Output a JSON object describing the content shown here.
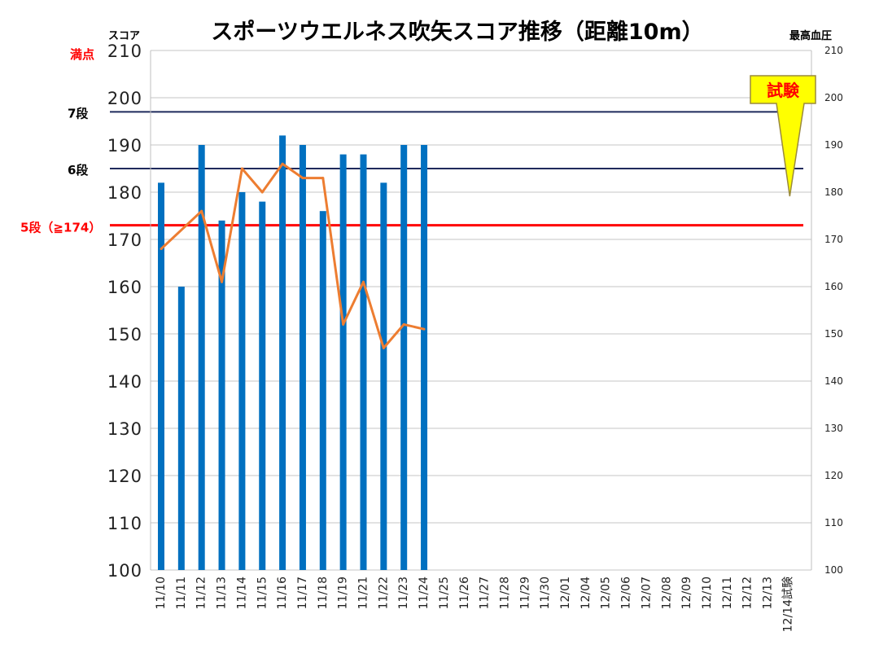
{
  "chart_data": {
    "type": "bar",
    "title": "スポーツウエルネス吹矢スコア推移（距離10m）",
    "ylabel": "スコア",
    "y2label": "最高血圧",
    "ylim": [
      100,
      210
    ],
    "y2lim": [
      100,
      210
    ],
    "yticks": [
      100,
      110,
      120,
      130,
      140,
      150,
      160,
      170,
      180,
      190,
      200,
      210
    ],
    "grid": true,
    "categories": [
      "11/10",
      "11/11",
      "11/12",
      "11/13",
      "11/14",
      "11/15",
      "11/16",
      "11/17",
      "11/18",
      "11/19",
      "11/21",
      "11/22",
      "11/23",
      "11/24",
      "11/25",
      "11/26",
      "11/27",
      "11/28",
      "11/29",
      "11/30",
      "12/01",
      "12/04",
      "12/05",
      "12/06",
      "12/07",
      "12/08",
      "12/09",
      "12/10",
      "12/11",
      "12/12",
      "12/13",
      "12/14試験"
    ],
    "series": [
      {
        "kind": "bar",
        "axis": "left",
        "color": "#0070c0",
        "values": [
          182,
          160,
          190,
          174,
          180,
          178,
          192,
          190,
          176,
          188,
          188,
          182,
          190,
          190,
          null,
          null,
          null,
          null,
          null,
          null,
          null,
          null,
          null,
          null,
          null,
          null,
          null,
          null,
          null,
          null,
          null,
          null
        ]
      },
      {
        "kind": "line",
        "axis": "right",
        "color": "#ed7d31",
        "values": [
          168,
          null,
          176,
          161,
          185,
          180,
          186,
          183,
          183,
          152,
          161,
          147,
          152,
          151,
          null,
          null,
          null,
          null,
          null,
          null,
          null,
          null,
          null,
          null,
          null,
          null,
          null,
          null,
          null,
          null,
          null,
          null
        ]
      }
    ],
    "reference_lines": [
      {
        "label": "満点",
        "value": 210,
        "color": "#ff0000",
        "style": "grid"
      },
      {
        "label": "7段",
        "value": 197,
        "color": "#1f2a5c"
      },
      {
        "label": "6段",
        "value": 185,
        "color": "#1f2a5c"
      },
      {
        "label": "5段（≧174）",
        "value": 173,
        "color": "#ff0000"
      }
    ],
    "callout": {
      "text": "試験",
      "bg": "#ffff00",
      "border": "#9a8a3c",
      "target": "12/14試験",
      "target_value": 180
    }
  }
}
